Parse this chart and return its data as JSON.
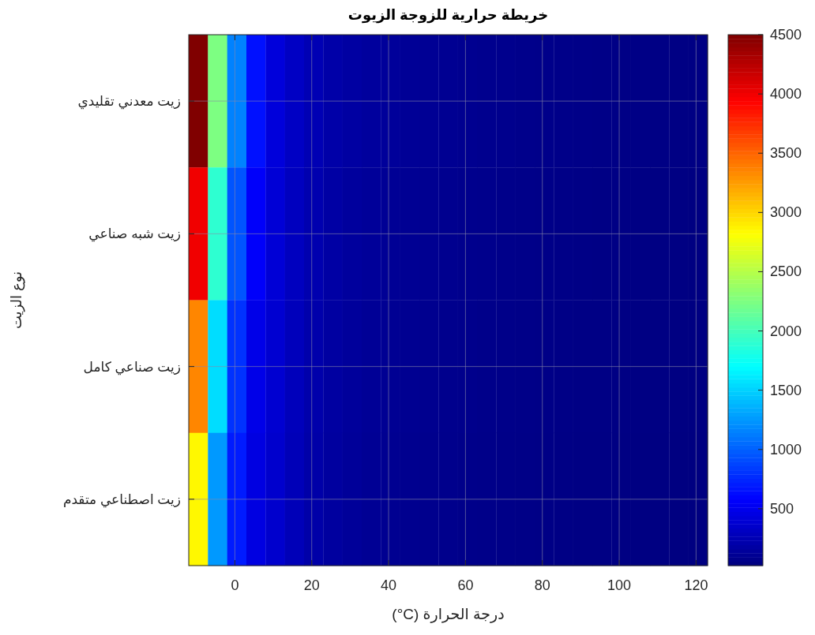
{
  "chart_data": {
    "type": "heatmap",
    "title": "خريطة حرارية للزوجة الزيوت",
    "xlabel": "درجة الحرارة (C°)",
    "ylabel": "نوع الزيت",
    "x": [
      -9.5,
      -4.5,
      0.5,
      5.5,
      10.5,
      15.5,
      20.5,
      25.5,
      30.5,
      35.5,
      40.5,
      45.5,
      50.5,
      55.5,
      60.5,
      65.5,
      70.5,
      75.5,
      80.5,
      85.5,
      90.5,
      95.5,
      100.5,
      105.5,
      110.5,
      115.5,
      120.5
    ],
    "y_categories": [
      "زيت معدني تقليدي",
      "زيت شبه صناعي",
      "زيت صناعي كامل",
      "زيت اصطناعي متقدم"
    ],
    "cells": [
      [
        4500,
        2250,
        1150,
        650,
        420,
        320,
        250,
        200,
        170,
        150,
        135,
        120,
        110,
        100,
        92,
        85,
        78,
        72,
        67,
        62,
        58,
        54,
        50,
        47,
        44,
        41,
        38
      ],
      [
        4000,
        1900,
        950,
        560,
        400,
        300,
        230,
        180,
        150,
        130,
        115,
        105,
        95,
        88,
        80,
        74,
        68,
        63,
        58,
        54,
        50,
        46,
        43,
        40,
        37,
        34,
        32
      ],
      [
        3350,
        1550,
        800,
        480,
        380,
        280,
        210,
        165,
        140,
        120,
        105,
        95,
        87,
        80,
        73,
        67,
        62,
        57,
        53,
        49,
        45,
        42,
        39,
        36,
        34,
        31,
        29
      ],
      [
        2850,
        1250,
        700,
        450,
        360,
        270,
        200,
        160,
        130,
        110,
        98,
        88,
        80,
        73,
        67,
        62,
        57,
        52,
        48,
        44,
        41,
        38,
        35,
        33,
        31,
        28,
        26
      ]
    ],
    "xlim": [
      -12,
      123
    ],
    "xticks": [
      0,
      20,
      40,
      60,
      80,
      100,
      120
    ],
    "clim": [
      20,
      4500
    ],
    "cticks": [
      500,
      1000,
      1500,
      2000,
      2500,
      3000,
      3500,
      4000,
      4500
    ],
    "grid": true
  }
}
